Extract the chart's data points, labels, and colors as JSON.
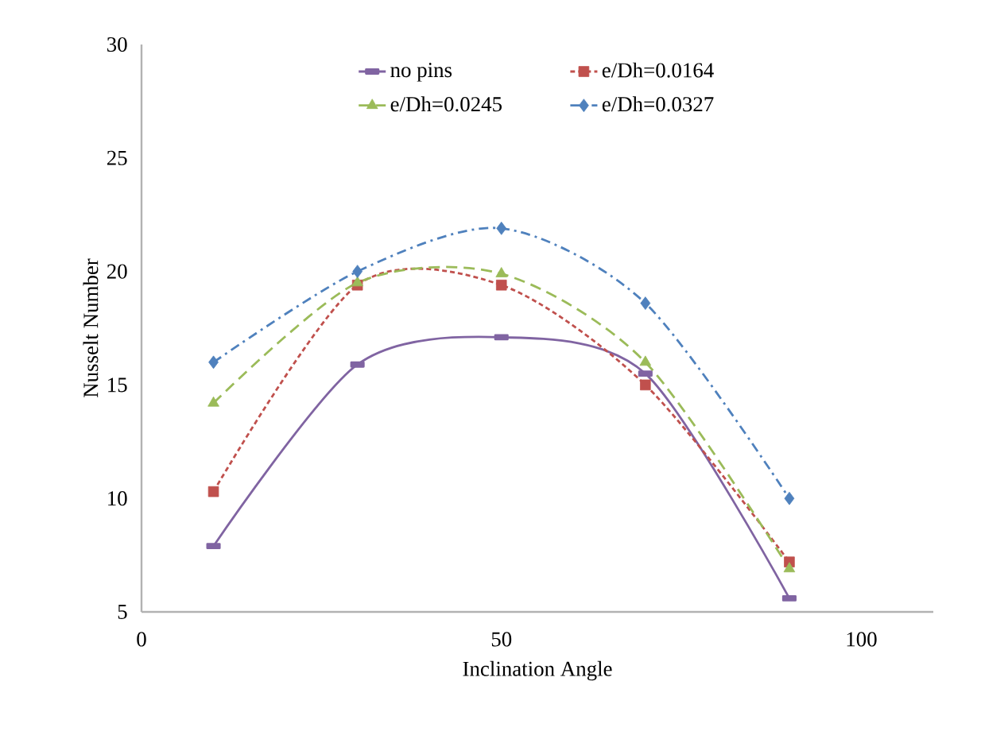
{
  "chart_data": {
    "type": "line",
    "xlabel": "Inclination Angle",
    "ylabel": "Nusselt Number",
    "x": [
      10,
      30,
      50,
      70,
      90
    ],
    "series": [
      {
        "name": "no pins",
        "color": "#8064a2",
        "marker": "square",
        "line_style": "solid",
        "values": [
          7.9,
          15.9,
          17.1,
          15.5,
          5.6
        ]
      },
      {
        "name": "e/Dh=0.0164",
        "color": "#c0504d",
        "marker": "square",
        "line_style": "dotted",
        "values": [
          10.3,
          19.4,
          19.4,
          15.0,
          7.2
        ]
      },
      {
        "name": "e/Dh=0.0245",
        "color": "#9bbb59",
        "marker": "triangle",
        "line_style": "dashed",
        "values": [
          14.2,
          19.5,
          19.9,
          16.0,
          6.9
        ]
      },
      {
        "name": "e/Dh=0.0327",
        "color": "#4f81bd",
        "marker": "diamond",
        "line_style": "dashdot",
        "values": [
          16.0,
          20.0,
          21.9,
          18.6,
          10.0
        ]
      }
    ],
    "xlim": [
      0,
      110
    ],
    "xticks": [
      0,
      50,
      100
    ],
    "ylim": [
      5,
      30
    ],
    "yticks": [
      5,
      10,
      15,
      20,
      25,
      30
    ],
    "grid": false,
    "legend": "top"
  }
}
